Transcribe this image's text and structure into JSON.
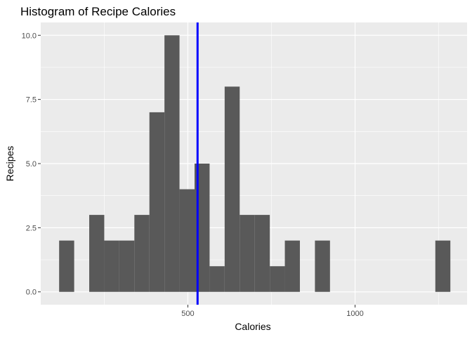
{
  "chart_data": {
    "type": "histogram",
    "title": "Histogram of Recipe Calories",
    "xlabel": "Calories",
    "ylabel": "Recipes",
    "xlim": [
      60,
      1335
    ],
    "ylim": [
      -0.5,
      10.5
    ],
    "x_ticks": [
      500,
      1000
    ],
    "x_minor_ticks": [
      250,
      750,
      1250
    ],
    "y_ticks": [
      0.0,
      2.5,
      5.0,
      7.5,
      10.0
    ],
    "y_tick_labels": [
      "0.0",
      "2.5",
      "5.0",
      "7.5",
      "10.0"
    ],
    "grid": true,
    "bins": [
      {
        "x0": 115,
        "x1": 160,
        "count": 2
      },
      {
        "x0": 160,
        "x1": 205,
        "count": 0
      },
      {
        "x0": 205,
        "x1": 250,
        "count": 3
      },
      {
        "x0": 250,
        "x1": 295,
        "count": 2
      },
      {
        "x0": 295,
        "x1": 340,
        "count": 2
      },
      {
        "x0": 340,
        "x1": 385,
        "count": 3
      },
      {
        "x0": 385,
        "x1": 430,
        "count": 7
      },
      {
        "x0": 430,
        "x1": 475,
        "count": 10
      },
      {
        "x0": 475,
        "x1": 520,
        "count": 4
      },
      {
        "x0": 520,
        "x1": 565,
        "count": 5
      },
      {
        "x0": 565,
        "x1": 610,
        "count": 1
      },
      {
        "x0": 610,
        "x1": 655,
        "count": 8
      },
      {
        "x0": 655,
        "x1": 700,
        "count": 3
      },
      {
        "x0": 700,
        "x1": 745,
        "count": 3
      },
      {
        "x0": 745,
        "x1": 790,
        "count": 1
      },
      {
        "x0": 790,
        "x1": 835,
        "count": 2
      },
      {
        "x0": 835,
        "x1": 880,
        "count": 0
      },
      {
        "x0": 880,
        "x1": 925,
        "count": 2
      },
      {
        "x0": 1240,
        "x1": 1285,
        "count": 2
      }
    ],
    "mean_line": {
      "x": 529
    },
    "colors": {
      "panel_background": "#ebebeb",
      "grid": "#ffffff",
      "bar_fill": "#595959",
      "mean_line": "#0000ff"
    }
  }
}
